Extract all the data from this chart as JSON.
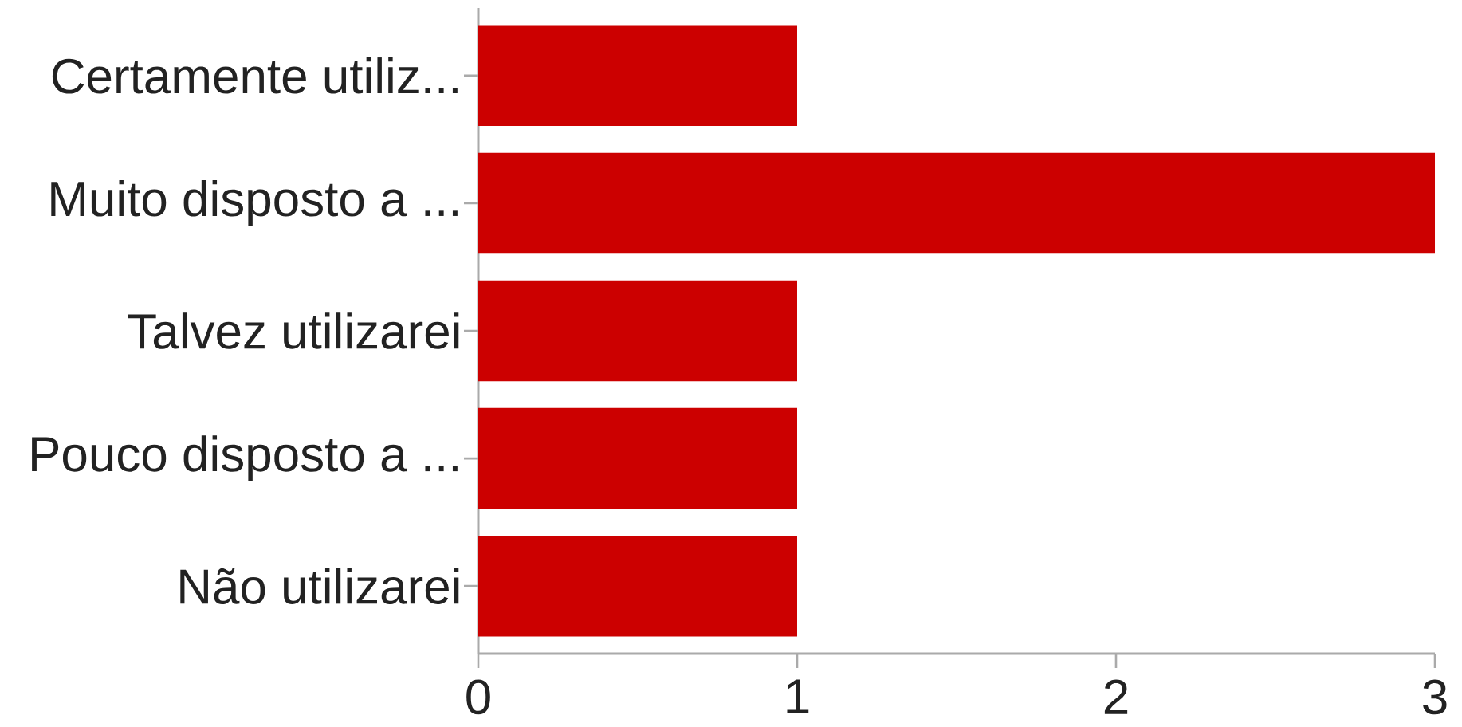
{
  "chart_data": {
    "type": "bar",
    "orientation": "horizontal",
    "categories": [
      "Certamente utiliz...",
      "Muito disposto a ...",
      "Talvez utilizarei",
      "Pouco disposto a ...",
      "Não utilizarei"
    ],
    "values": [
      1,
      3,
      1,
      1,
      1
    ],
    "color": "#cc0000",
    "xlim": [
      0,
      3
    ],
    "xticks": [
      0,
      1,
      2,
      3
    ]
  }
}
